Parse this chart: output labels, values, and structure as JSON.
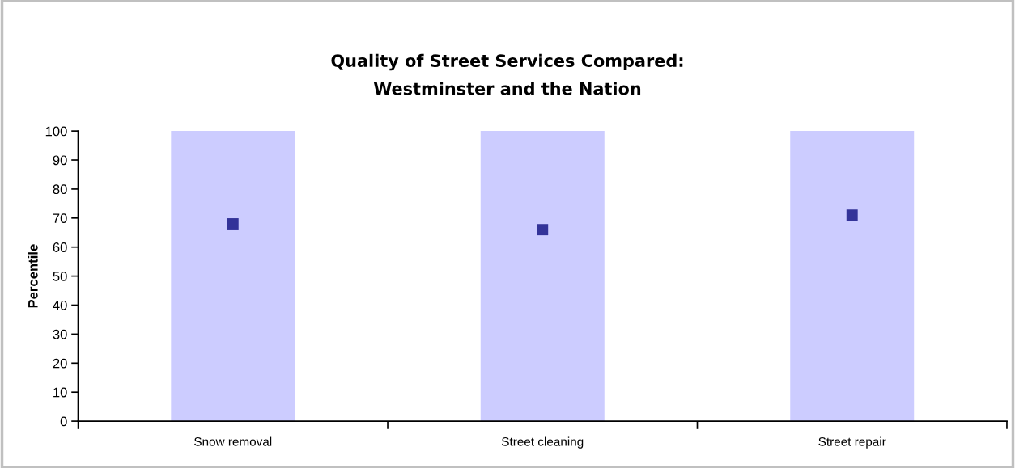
{
  "chart_data": {
    "type": "bar",
    "title": "Quality of Street Services Compared:\nWestminster and the Nation",
    "ylabel": "Percentile",
    "categories": [
      "Snow removal",
      "Street cleaning",
      "Street repair"
    ],
    "series": [
      {
        "color": "#ccccff",
        "values": [
          100,
          100,
          100
        ]
      },
      {
        "type": "scatter",
        "color": "#333399",
        "values": [
          68,
          66,
          71
        ]
      }
    ],
    "ylim": [
      0,
      100
    ],
    "yticks": [
      0,
      10,
      20,
      30,
      40,
      50,
      60,
      70,
      80,
      90,
      100
    ],
    "grid": false,
    "marker": "square"
  }
}
